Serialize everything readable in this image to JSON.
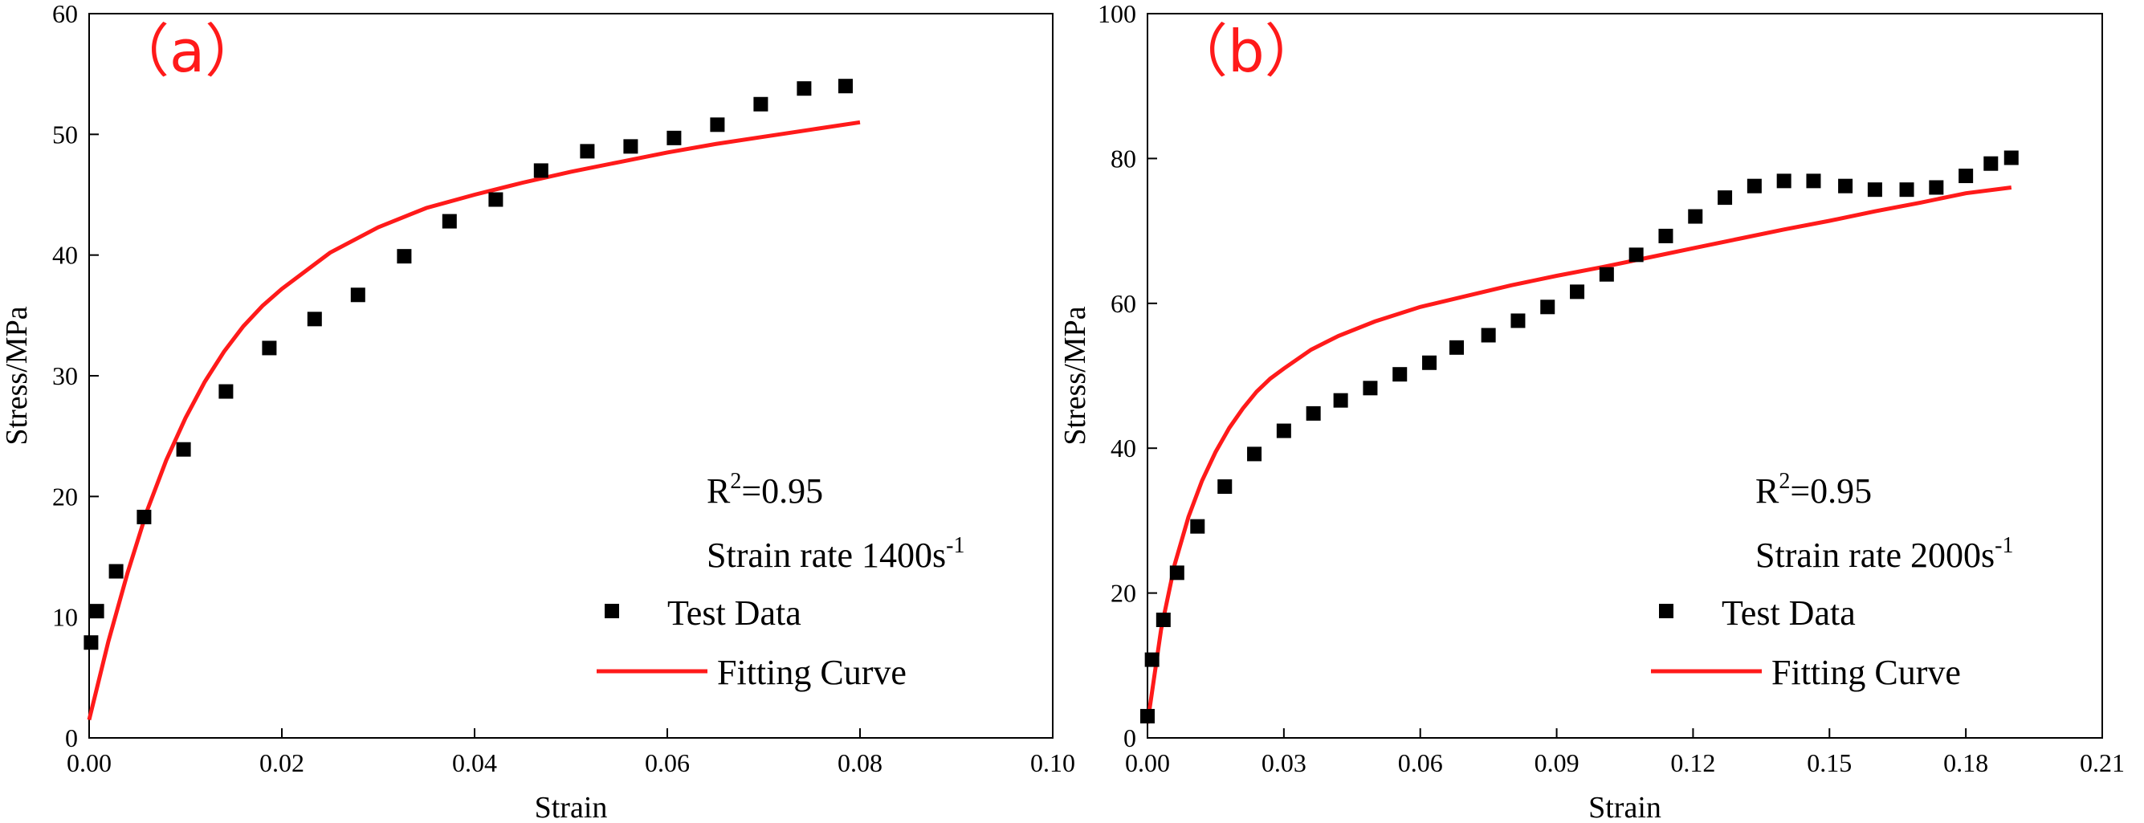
{
  "chart_data": [
    {
      "type": "scatter",
      "panel_label": "（a）",
      "xlabel": "Strain",
      "ylabel": "Stress/MPa",
      "xlim": [
        0,
        0.1
      ],
      "ylim": [
        0,
        60
      ],
      "xticks": [
        0,
        0.02,
        0.04,
        0.06,
        0.08,
        0.1
      ],
      "xtick_labels": [
        "0.00",
        "0.02",
        "0.04",
        "0.06",
        "0.08",
        "0.10"
      ],
      "yticks": [
        0,
        10,
        20,
        30,
        40,
        50,
        60
      ],
      "ytick_labels": [
        "0",
        "10",
        "20",
        "30",
        "40",
        "50",
        "60"
      ],
      "r2_prefix": "R",
      "r2_sup": "2",
      "r2_value": "=0.95",
      "rate_text": "Strain rate 1400s",
      "rate_sup": "-1",
      "legend": [
        "Test Data",
        "Fitting Curve"
      ],
      "series": [
        {
          "name": "Test Data",
          "kind": "scatter",
          "x": [
            0.0002,
            0.0008,
            0.0028,
            0.0057,
            0.0098,
            0.0142,
            0.0187,
            0.0234,
            0.0279,
            0.0327,
            0.0374,
            0.0422,
            0.0469,
            0.0517,
            0.0562,
            0.0607,
            0.0652,
            0.0697,
            0.0742,
            0.0785
          ],
          "y": [
            7.9,
            10.5,
            13.8,
            18.3,
            23.9,
            28.7,
            32.3,
            34.7,
            36.7,
            39.9,
            42.8,
            44.6,
            47.0,
            48.6,
            49.0,
            49.7,
            50.8,
            52.5,
            53.8,
            54.0
          ]
        },
        {
          "name": "Fitting Curve",
          "kind": "line",
          "x": [
            0,
            0.002,
            0.004,
            0.006,
            0.008,
            0.01,
            0.012,
            0.014,
            0.016,
            0.018,
            0.02,
            0.025,
            0.03,
            0.035,
            0.04,
            0.045,
            0.05,
            0.055,
            0.06,
            0.065,
            0.07,
            0.075,
            0.08
          ],
          "y": [
            1.5,
            8.0,
            13.7,
            18.8,
            23.0,
            26.5,
            29.5,
            32.0,
            34.1,
            35.8,
            37.2,
            40.2,
            42.3,
            43.9,
            45.0,
            46.0,
            46.9,
            47.7,
            48.5,
            49.2,
            49.8,
            50.4,
            51.0
          ]
        }
      ]
    },
    {
      "type": "scatter",
      "panel_label": "（b）",
      "xlabel": "Strain",
      "ylabel": "Stress/MPa",
      "xlim": [
        0,
        0.21
      ],
      "ylim": [
        0,
        100
      ],
      "xticks": [
        0,
        0.03,
        0.06,
        0.09,
        0.12,
        0.15,
        0.18,
        0.21
      ],
      "xtick_labels": [
        "0.00",
        "0.03",
        "0.06",
        "0.09",
        "0.12",
        "0.15",
        "0.18",
        "0.21"
      ],
      "yticks": [
        0,
        20,
        40,
        60,
        80,
        100
      ],
      "ytick_labels": [
        "0",
        "20",
        "40",
        "60",
        "80",
        "100"
      ],
      "r2_prefix": "R",
      "r2_sup": "2",
      "r2_value": "=0.95",
      "rate_text": "Strain rate 2000s",
      "rate_sup": "-1",
      "legend": [
        "Test Data",
        "Fitting Curve"
      ],
      "series": [
        {
          "name": "Test Data",
          "kind": "scatter",
          "x": [
            0.0,
            0.001,
            0.0035,
            0.0065,
            0.011,
            0.017,
            0.0235,
            0.03,
            0.0365,
            0.0425,
            0.049,
            0.0555,
            0.062,
            0.068,
            0.075,
            0.0815,
            0.088,
            0.0945,
            0.101,
            0.1075,
            0.114,
            0.1205,
            0.127,
            0.1335,
            0.14,
            0.1465,
            0.1535,
            0.16,
            0.167,
            0.1735,
            0.18,
            0.1855,
            0.19
          ],
          "y": [
            3.0,
            10.8,
            16.3,
            22.8,
            29.2,
            34.7,
            39.2,
            42.4,
            44.8,
            46.6,
            48.3,
            50.2,
            51.8,
            53.9,
            55.6,
            57.6,
            59.5,
            61.6,
            64.0,
            66.7,
            69.3,
            72.0,
            74.6,
            76.2,
            76.9,
            76.9,
            76.2,
            75.7,
            75.7,
            76.0,
            77.6,
            79.3,
            80.1
          ]
        },
        {
          "name": "Fitting Curve",
          "kind": "line",
          "x": [
            0,
            0.003,
            0.006,
            0.009,
            0.012,
            0.015,
            0.018,
            0.021,
            0.024,
            0.027,
            0.03,
            0.036,
            0.042,
            0.05,
            0.06,
            0.07,
            0.08,
            0.09,
            0.1,
            0.11,
            0.12,
            0.13,
            0.14,
            0.15,
            0.16,
            0.17,
            0.18,
            0.19
          ],
          "y": [
            2.0,
            15.0,
            24.0,
            30.5,
            35.5,
            39.5,
            42.8,
            45.5,
            47.8,
            49.6,
            51.0,
            53.6,
            55.5,
            57.5,
            59.5,
            61.0,
            62.5,
            63.8,
            65.0,
            66.3,
            67.6,
            68.9,
            70.2,
            71.4,
            72.7,
            73.9,
            75.2,
            76.0
          ]
        }
      ]
    }
  ],
  "colors": {
    "scatter": "#000000",
    "fit": "#ff1a1a",
    "panel_label": "#ff1a1a"
  }
}
